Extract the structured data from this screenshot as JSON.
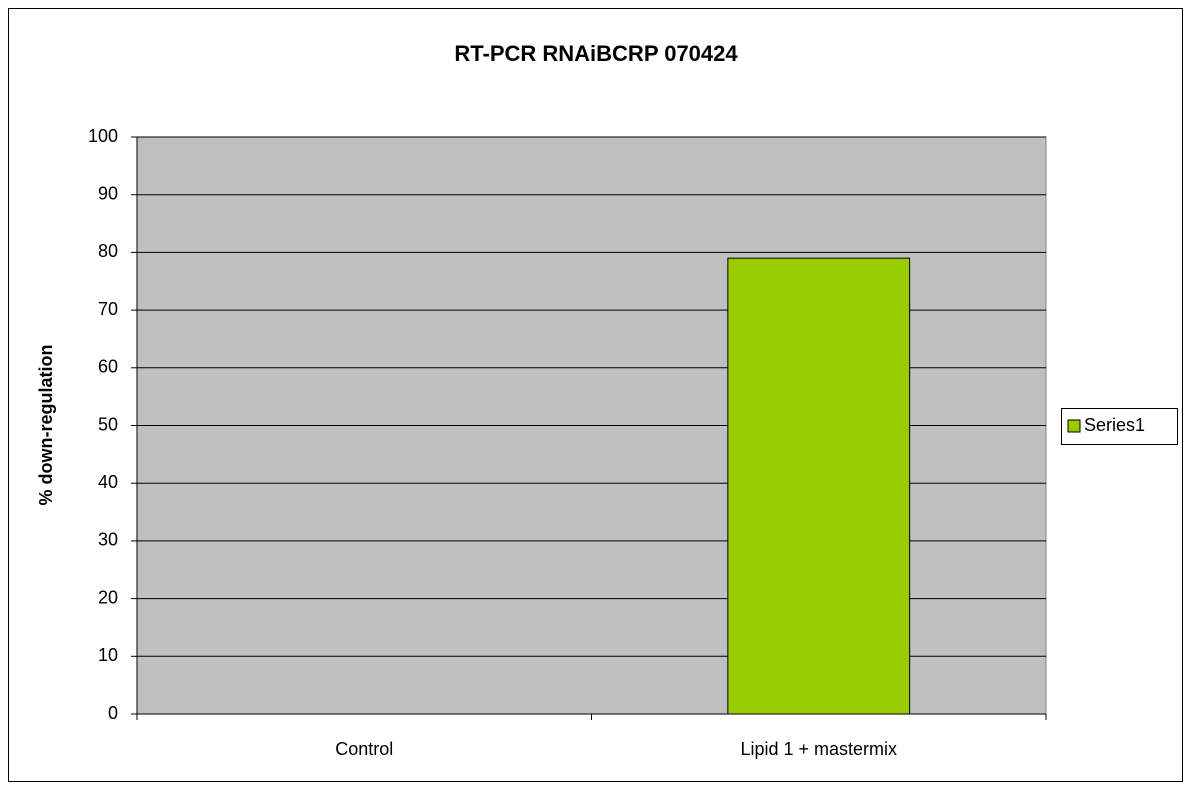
{
  "chart_data": {
    "type": "bar",
    "title": "RT-PCR RNAiBCRP 070424",
    "y_label": "% down-regulation",
    "categories": [
      "Control",
      "Lipid 1 + mastermix"
    ],
    "series": [
      {
        "name": "Series1",
        "color": "#99cc00",
        "values": [
          0,
          79
        ]
      }
    ],
    "ylim": [
      0,
      100
    ],
    "yticks": [
      0,
      10,
      20,
      30,
      40,
      50,
      60,
      70,
      80,
      90,
      100
    ],
    "grid": true,
    "legend": "right"
  }
}
